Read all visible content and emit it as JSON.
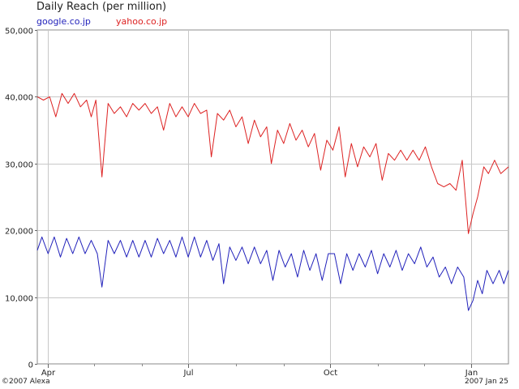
{
  "chart_data": {
    "type": "line",
    "title": "Daily Reach (per million)",
    "ylim": [
      0,
      50000
    ],
    "yticks": [
      0,
      10000,
      20000,
      30000,
      40000,
      50000
    ],
    "ytick_labels": [
      "0",
      "10,000",
      "20,000",
      "30,000",
      "40,000",
      "50,000"
    ],
    "xlim": [
      "2006-03-25",
      "2007-01-25"
    ],
    "xticks": [
      {
        "date": "2006-04-01",
        "label": "Apr"
      },
      {
        "date": "2006-07-01",
        "label": "Jul"
      },
      {
        "date": "2006-10-01",
        "label": "Oct"
      },
      {
        "date": "2007-01-01",
        "label": "Jan"
      }
    ],
    "minor_ticks": [
      "2006-05-01",
      "2006-06-01",
      "2006-08-01",
      "2006-09-01",
      "2006-11-01",
      "2006-12-01"
    ],
    "grid": true,
    "legend_position": "top-left",
    "series": [
      {
        "name": "google.co.jp",
        "color": "#2222bb",
        "points": [
          [
            "2006-03-25",
            17000
          ],
          [
            "2006-03-28",
            19000
          ],
          [
            "2006-04-01",
            16500
          ],
          [
            "2006-04-05",
            19000
          ],
          [
            "2006-04-09",
            16000
          ],
          [
            "2006-04-13",
            18800
          ],
          [
            "2006-04-17",
            16500
          ],
          [
            "2006-04-21",
            19000
          ],
          [
            "2006-04-25",
            16500
          ],
          [
            "2006-04-29",
            18500
          ],
          [
            "2006-05-03",
            16500
          ],
          [
            "2006-05-06",
            11500
          ],
          [
            "2006-05-10",
            18500
          ],
          [
            "2006-05-14",
            16500
          ],
          [
            "2006-05-18",
            18500
          ],
          [
            "2006-05-22",
            16000
          ],
          [
            "2006-05-26",
            18500
          ],
          [
            "2006-05-30",
            16000
          ],
          [
            "2006-06-03",
            18500
          ],
          [
            "2006-06-07",
            16000
          ],
          [
            "2006-06-11",
            18800
          ],
          [
            "2006-06-15",
            16500
          ],
          [
            "2006-06-19",
            18500
          ],
          [
            "2006-06-23",
            16000
          ],
          [
            "2006-06-27",
            19000
          ],
          [
            "2006-07-01",
            16000
          ],
          [
            "2006-07-05",
            19000
          ],
          [
            "2006-07-09",
            16000
          ],
          [
            "2006-07-13",
            18500
          ],
          [
            "2006-07-17",
            15500
          ],
          [
            "2006-07-21",
            18000
          ],
          [
            "2006-07-24",
            12000
          ],
          [
            "2006-07-28",
            17500
          ],
          [
            "2006-08-01",
            15500
          ],
          [
            "2006-08-05",
            17500
          ],
          [
            "2006-08-09",
            15000
          ],
          [
            "2006-08-13",
            17500
          ],
          [
            "2006-08-17",
            15000
          ],
          [
            "2006-08-21",
            17000
          ],
          [
            "2006-08-25",
            12500
          ],
          [
            "2006-08-29",
            17000
          ],
          [
            "2006-09-02",
            14500
          ],
          [
            "2006-09-06",
            16500
          ],
          [
            "2006-09-10",
            13000
          ],
          [
            "2006-09-14",
            17000
          ],
          [
            "2006-09-18",
            14000
          ],
          [
            "2006-09-22",
            16500
          ],
          [
            "2006-09-26",
            12500
          ],
          [
            "2006-09-30",
            16500
          ],
          [
            "2006-10-04",
            16500
          ],
          [
            "2006-10-08",
            12000
          ],
          [
            "2006-10-12",
            16500
          ],
          [
            "2006-10-16",
            14000
          ],
          [
            "2006-10-20",
            16500
          ],
          [
            "2006-10-24",
            14500
          ],
          [
            "2006-10-28",
            17000
          ],
          [
            "2006-11-01",
            13500
          ],
          [
            "2006-11-05",
            16500
          ],
          [
            "2006-11-09",
            14500
          ],
          [
            "2006-11-13",
            17000
          ],
          [
            "2006-11-17",
            14000
          ],
          [
            "2006-11-21",
            16500
          ],
          [
            "2006-11-25",
            15000
          ],
          [
            "2006-11-29",
            17500
          ],
          [
            "2006-12-03",
            14500
          ],
          [
            "2006-12-07",
            16000
          ],
          [
            "2006-12-11",
            13000
          ],
          [
            "2006-12-15",
            14500
          ],
          [
            "2006-12-19",
            12000
          ],
          [
            "2006-12-23",
            14500
          ],
          [
            "2006-12-27",
            13000
          ],
          [
            "2006-12-30",
            8000
          ],
          [
            "2007-01-02",
            9500
          ],
          [
            "2007-01-05",
            12500
          ],
          [
            "2007-01-08",
            10500
          ],
          [
            "2007-01-11",
            14000
          ],
          [
            "2007-01-15",
            12000
          ],
          [
            "2007-01-19",
            14000
          ],
          [
            "2007-01-22",
            12000
          ],
          [
            "2007-01-25",
            14000
          ]
        ]
      },
      {
        "name": "yahoo.co.jp",
        "color": "#dd2222",
        "points": [
          [
            "2006-03-25",
            40000
          ],
          [
            "2006-03-29",
            39500
          ],
          [
            "2006-04-02",
            40000
          ],
          [
            "2006-04-06",
            37000
          ],
          [
            "2006-04-10",
            40500
          ],
          [
            "2006-04-14",
            39000
          ],
          [
            "2006-04-18",
            40500
          ],
          [
            "2006-04-22",
            38500
          ],
          [
            "2006-04-26",
            39500
          ],
          [
            "2006-04-29",
            37000
          ],
          [
            "2006-05-02",
            39500
          ],
          [
            "2006-05-06",
            28000
          ],
          [
            "2006-05-10",
            39000
          ],
          [
            "2006-05-14",
            37500
          ],
          [
            "2006-05-18",
            38500
          ],
          [
            "2006-05-22",
            37000
          ],
          [
            "2006-05-26",
            39000
          ],
          [
            "2006-05-30",
            38000
          ],
          [
            "2006-06-03",
            39000
          ],
          [
            "2006-06-07",
            37500
          ],
          [
            "2006-06-11",
            38500
          ],
          [
            "2006-06-15",
            35000
          ],
          [
            "2006-06-19",
            39000
          ],
          [
            "2006-06-23",
            37000
          ],
          [
            "2006-06-27",
            38500
          ],
          [
            "2006-07-01",
            37000
          ],
          [
            "2006-07-05",
            39000
          ],
          [
            "2006-07-09",
            37500
          ],
          [
            "2006-07-13",
            38000
          ],
          [
            "2006-07-16",
            31000
          ],
          [
            "2006-07-20",
            37500
          ],
          [
            "2006-07-24",
            36500
          ],
          [
            "2006-07-28",
            38000
          ],
          [
            "2006-08-01",
            35500
          ],
          [
            "2006-08-05",
            37000
          ],
          [
            "2006-08-09",
            33000
          ],
          [
            "2006-08-13",
            36500
          ],
          [
            "2006-08-17",
            34000
          ],
          [
            "2006-08-21",
            35500
          ],
          [
            "2006-08-24",
            30000
          ],
          [
            "2006-08-28",
            35000
          ],
          [
            "2006-09-01",
            33000
          ],
          [
            "2006-09-05",
            36000
          ],
          [
            "2006-09-09",
            33500
          ],
          [
            "2006-09-13",
            35000
          ],
          [
            "2006-09-17",
            32500
          ],
          [
            "2006-09-21",
            34500
          ],
          [
            "2006-09-25",
            29000
          ],
          [
            "2006-09-29",
            33500
          ],
          [
            "2006-10-03",
            32000
          ],
          [
            "2006-10-07",
            35500
          ],
          [
            "2006-10-11",
            28000
          ],
          [
            "2006-10-15",
            33000
          ],
          [
            "2006-10-19",
            29500
          ],
          [
            "2006-10-23",
            32500
          ],
          [
            "2006-10-27",
            31000
          ],
          [
            "2006-10-31",
            33000
          ],
          [
            "2006-11-04",
            27500
          ],
          [
            "2006-11-08",
            31500
          ],
          [
            "2006-11-12",
            30500
          ],
          [
            "2006-11-16",
            32000
          ],
          [
            "2006-11-20",
            30500
          ],
          [
            "2006-11-24",
            32000
          ],
          [
            "2006-11-28",
            30500
          ],
          [
            "2006-12-02",
            32500
          ],
          [
            "2006-12-06",
            29500
          ],
          [
            "2006-12-10",
            27000
          ],
          [
            "2006-12-14",
            26500
          ],
          [
            "2006-12-18",
            27000
          ],
          [
            "2006-12-22",
            26000
          ],
          [
            "2006-12-26",
            30500
          ],
          [
            "2006-12-30",
            19500
          ],
          [
            "2007-01-02",
            22500
          ],
          [
            "2007-01-05",
            25000
          ],
          [
            "2007-01-09",
            29500
          ],
          [
            "2007-01-12",
            28500
          ],
          [
            "2007-01-16",
            30500
          ],
          [
            "2007-01-20",
            28500
          ],
          [
            "2007-01-25",
            29500
          ]
        ]
      }
    ]
  },
  "footer": {
    "left": "©2007 Alexa",
    "right": "2007 Jan 25"
  }
}
